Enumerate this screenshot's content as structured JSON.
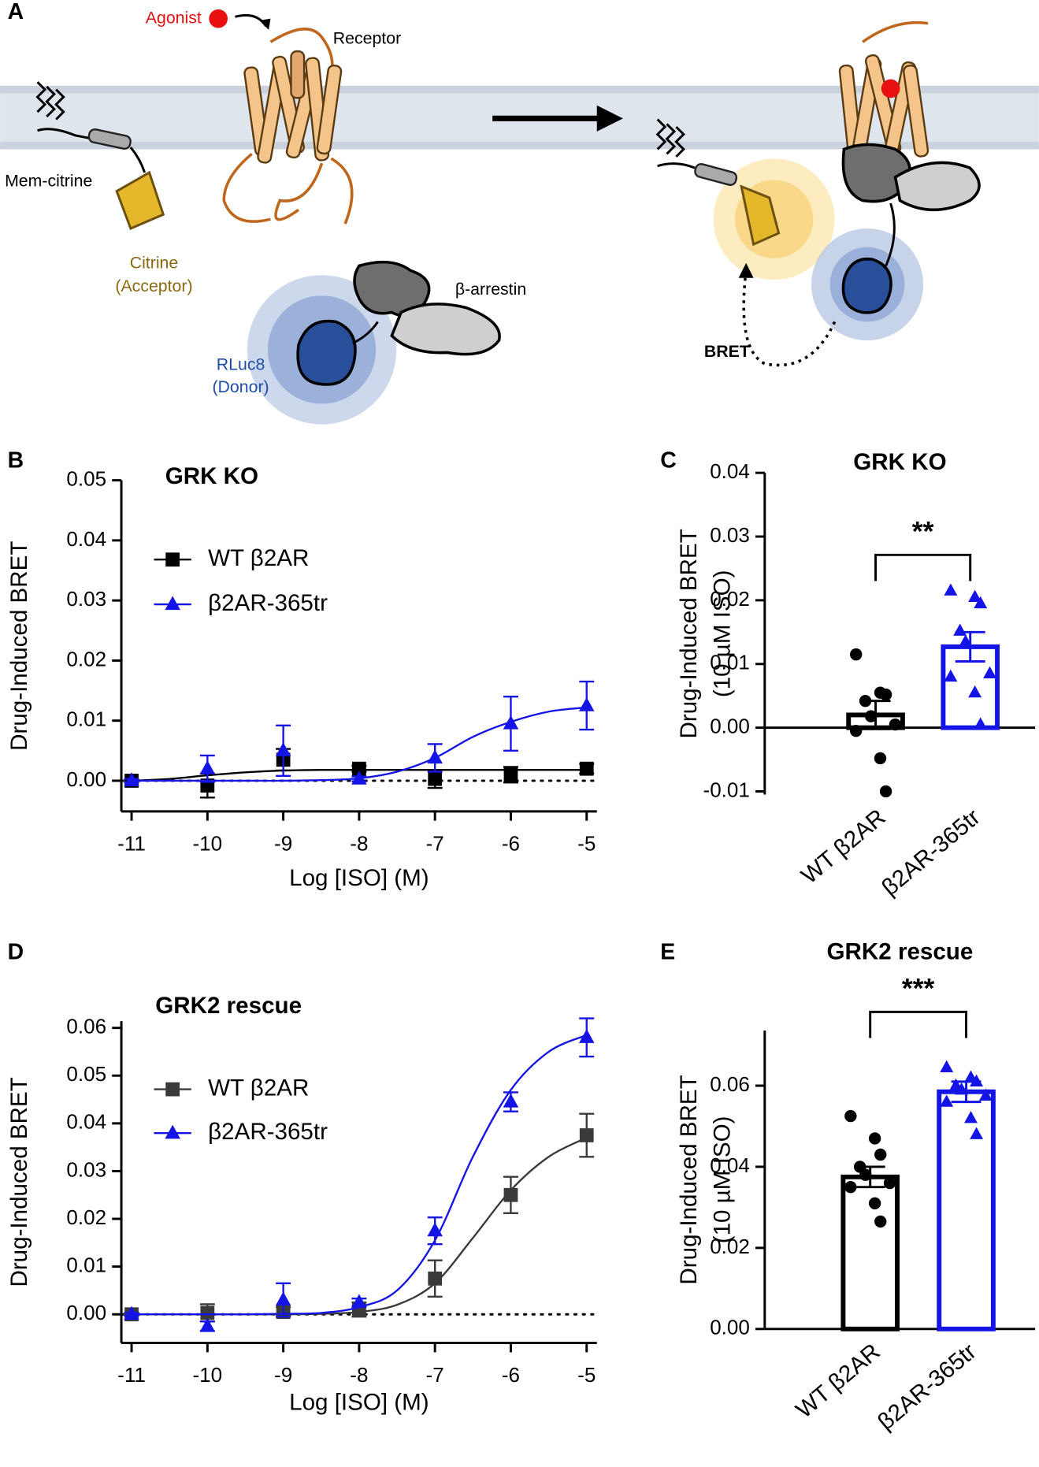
{
  "panel_labels": [
    "A",
    "B",
    "C",
    "D",
    "E"
  ],
  "diagram": {
    "agonist": "Agonist",
    "receptor": "Receptor",
    "mem_citrine": "Mem-citrine",
    "citrine": "Citrine",
    "acceptor": "(Acceptor)",
    "arrestin": "β-arrestin",
    "rluc8": "RLuc8",
    "donor": "(Donor)",
    "bret": "BRET"
  },
  "chart_data": [
    {
      "type": "line",
      "title": "GRK KO",
      "x_label": "Log [ISO] (M)",
      "y_label": "Drug-Induced BRET",
      "x": [
        -11,
        -10,
        -9,
        -8,
        -7,
        -6,
        -5
      ],
      "fit_x": [
        -11,
        -10.5,
        -10,
        -9.5,
        -9,
        -8.5,
        -8,
        -7.5,
        -7,
        -6.5,
        -6,
        -5.5,
        -5
      ],
      "series": [
        {
          "name": "WT β2AR",
          "color": "#000000",
          "marker": "square",
          "values": [
            0,
            -0.0008,
            0.0035,
            0.002,
            0.0003,
            0.001,
            0.002
          ],
          "errors": [
            0.0003,
            0.002,
            0.0018,
            0.0005,
            0.0015,
            0.0013,
            0.0008
          ],
          "fit_values": [
            0,
            0.0003,
            0.0009,
            0.0014,
            0.0017,
            0.0018,
            0.0018,
            0.0018,
            0.0018,
            0.0018,
            0.0018,
            0.0018,
            0.0018
          ]
        },
        {
          "name": "β2AR-365tr",
          "color": "#1414e6",
          "marker": "triangle",
          "values": [
            0,
            0.002,
            0.005,
            0.0003,
            0.0038,
            0.0095,
            0.0125
          ],
          "errors": [
            0.0003,
            0.0022,
            0.0042,
            0.0004,
            0.0023,
            0.0045,
            0.004
          ],
          "fit_values": [
            0,
            0,
            0,
            0,
            0,
            0.0001,
            0.0004,
            0.0015,
            0.0038,
            0.0073,
            0.0098,
            0.0115,
            0.0122
          ]
        }
      ],
      "hline": 0,
      "xlim": [
        -11.135,
        -4.865
      ],
      "ylim": [
        -0.0051,
        0.05
      ],
      "xticks": [
        -11,
        -10,
        -9,
        -8,
        -7,
        -6,
        -5
      ],
      "yticks": [
        {
          "value": 0,
          "label": "0.00"
        },
        {
          "value": 0.01,
          "label": "0.01"
        },
        {
          "value": 0.02,
          "label": "0.02"
        },
        {
          "value": 0.03,
          "label": "0.03"
        },
        {
          "value": 0.04,
          "label": "0.04"
        },
        {
          "value": 0.05,
          "label": "0.05"
        }
      ]
    },
    {
      "type": "bar",
      "title": "GRK KO",
      "y_label": [
        "Drug-Induced BRET",
        "(10 µM ISO)"
      ],
      "categories": [
        "WT β2AR",
        "β2AR-365tr"
      ],
      "colors": [
        "#000000",
        "#1414e6"
      ],
      "values": [
        0.002,
        0.0127
      ],
      "errors": [
        0.0022,
        0.0023
      ],
      "points": [
        [
          0.0115,
          0.0055,
          0.0052,
          0.0042,
          0.0018,
          0.0005,
          -0.0005,
          -0.0048,
          -0.01
        ],
        [
          0.0215,
          0.0205,
          0.0195,
          0.0152,
          0.0135,
          0.0085,
          0.008,
          0.0055,
          0.0005
        ]
      ],
      "markers": [
        "circle",
        "triangle"
      ],
      "significance": "**",
      "ylim": [
        -0.0105,
        0.04
      ],
      "yticks": [
        {
          "value": -0.01,
          "label": "-0.01"
        },
        {
          "value": 0,
          "label": "0.00"
        },
        {
          "value": 0.01,
          "label": "0.01"
        },
        {
          "value": 0.02,
          "label": "0.02"
        },
        {
          "value": 0.03,
          "label": "0.03"
        },
        {
          "value": 0.04,
          "label": "0.04"
        }
      ]
    },
    {
      "type": "line",
      "title": "GRK2 rescue",
      "x_label": "Log [ISO] (M)",
      "y_label": "Drug-Induced BRET",
      "x": [
        -11,
        -10,
        -9,
        -8,
        -7,
        -6,
        -5
      ],
      "fit_x": [
        -11,
        -10.5,
        -10,
        -9.5,
        -9,
        -8.5,
        -8,
        -7.5,
        -7,
        -6.5,
        -6,
        -5.5,
        -5
      ],
      "series": [
        {
          "name": "WT β2AR",
          "color": "#3a3a3a",
          "marker": "square",
          "values": [
            0,
            0.0003,
            0.0005,
            0.001,
            0.0075,
            0.025,
            0.0375
          ],
          "errors": [
            0.0003,
            0.0018,
            0.001,
            0.0015,
            0.0038,
            0.0038,
            0.0045
          ],
          "fit_values": [
            0,
            0,
            0,
            0,
            0,
            0.0001,
            0.0005,
            0.002,
            0.0065,
            0.016,
            0.026,
            0.033,
            0.037
          ]
        },
        {
          "name": "β2AR-365tr",
          "color": "#1414e6",
          "marker": "triangle",
          "values": [
            0,
            -0.0025,
            0.003,
            0.0025,
            0.0175,
            0.0445,
            0.058
          ],
          "errors": [
            0.0003,
            0.001,
            0.0035,
            0.0008,
            0.0028,
            0.002,
            0.004
          ],
          "fit_values": [
            0,
            0,
            0,
            0,
            0.0001,
            0.0003,
            0.0015,
            0.005,
            0.0155,
            0.033,
            0.047,
            0.055,
            0.0585
          ]
        }
      ],
      "hline": 0,
      "xlim": [
        -11.135,
        -4.865
      ],
      "ylim": [
        -0.006,
        0.0614
      ],
      "xticks": [
        -11,
        -10,
        -9,
        -8,
        -7,
        -6,
        -5
      ],
      "yticks": [
        {
          "value": 0,
          "label": "0.00"
        },
        {
          "value": 0.01,
          "label": "0.01"
        },
        {
          "value": 0.02,
          "label": "0.02"
        },
        {
          "value": 0.03,
          "label": "0.03"
        },
        {
          "value": 0.04,
          "label": "0.04"
        },
        {
          "value": 0.05,
          "label": "0.05"
        },
        {
          "value": 0.06,
          "label": "0.06"
        }
      ]
    },
    {
      "type": "bar",
      "title": "GRK2 rescue",
      "y_label": [
        "Drug-Induced BRET",
        "(10 µM ISO)"
      ],
      "categories": [
        "WT β2AR",
        "β2AR-365tr"
      ],
      "colors": [
        "#000000",
        "#1414e6"
      ],
      "values": [
        0.0375,
        0.0585
      ],
      "errors": [
        0.0025,
        0.0025
      ],
      "points": [
        [
          0.0525,
          0.047,
          0.043,
          0.04,
          0.038,
          0.036,
          0.035,
          0.031,
          0.0265
        ],
        [
          0.0645,
          0.062,
          0.061,
          0.06,
          0.059,
          0.0575,
          0.056,
          0.052,
          0.048
        ]
      ],
      "markers": [
        "circle",
        "triangle"
      ],
      "significance": "***",
      "ylim": [
        0,
        0.0736
      ],
      "yticks": [
        {
          "value": 0,
          "label": "0.00"
        },
        {
          "value": 0.02,
          "label": "0.02"
        },
        {
          "value": 0.04,
          "label": "0.04"
        },
        {
          "value": 0.06,
          "label": "0.06"
        }
      ]
    }
  ]
}
